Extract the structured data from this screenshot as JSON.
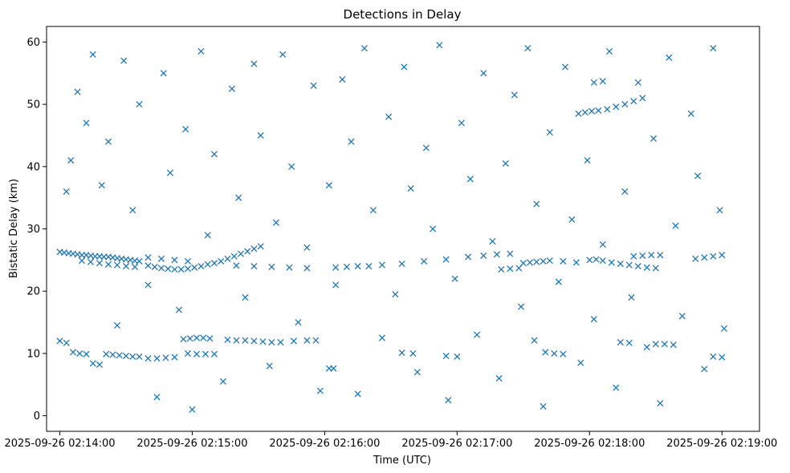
{
  "chart_data": {
    "type": "scatter",
    "title": "Detections in Delay",
    "xlabel": "Time (UTC)",
    "ylabel": "Bistatic Delay (km)",
    "marker": "x",
    "color": "#1f77b4",
    "grid": false,
    "legend": "none",
    "xlim": [
      "2025-09-26 02:13:54",
      "2025-09-26 02:19:17"
    ],
    "ylim": [
      -2.5,
      62.5
    ],
    "x_ticks": [
      "2025-09-26 02:14:00",
      "2025-09-26 02:15:00",
      "2025-09-26 02:16:00",
      "2025-09-26 02:17:00",
      "2025-09-26 02:18:00",
      "2025-09-26 02:19:00"
    ],
    "y_ticks": [
      "0",
      "10",
      "20",
      "30",
      "40",
      "50",
      "60"
    ],
    "series": [
      {
        "points": [
          [
            "2025-09-26 02:14:00",
            26.3
          ],
          [
            "2025-09-26 02:14:02",
            26.2
          ],
          [
            "2025-09-26 02:14:04",
            26.1
          ],
          [
            "2025-09-26 02:14:06",
            26.0
          ],
          [
            "2025-09-26 02:14:08",
            25.9
          ],
          [
            "2025-09-26 02:14:10",
            25.8
          ],
          [
            "2025-09-26 02:14:12",
            25.8
          ],
          [
            "2025-09-26 02:14:14",
            25.7
          ],
          [
            "2025-09-26 02:14:16",
            25.6
          ],
          [
            "2025-09-26 02:14:18",
            25.6
          ],
          [
            "2025-09-26 02:14:20",
            25.5
          ],
          [
            "2025-09-26 02:14:22",
            25.5
          ],
          [
            "2025-09-26 02:14:24",
            25.4
          ],
          [
            "2025-09-26 02:14:26",
            25.3
          ],
          [
            "2025-09-26 02:14:28",
            25.2
          ],
          [
            "2025-09-26 02:14:30",
            25.1
          ],
          [
            "2025-09-26 02:14:32",
            25.0
          ],
          [
            "2025-09-26 02:14:34",
            24.9
          ],
          [
            "2025-09-26 02:14:36",
            24.8
          ],
          [
            "2025-09-26 02:14:10",
            24.9
          ],
          [
            "2025-09-26 02:14:14",
            24.7
          ],
          [
            "2025-09-26 02:14:18",
            24.5
          ],
          [
            "2025-09-26 02:14:22",
            24.3
          ],
          [
            "2025-09-26 02:14:26",
            24.2
          ],
          [
            "2025-09-26 02:14:30",
            24.0
          ],
          [
            "2025-09-26 02:14:34",
            23.9
          ],
          [
            "2025-09-26 02:14:40",
            24.1
          ],
          [
            "2025-09-26 02:14:43",
            23.9
          ],
          [
            "2025-09-26 02:14:46",
            23.7
          ],
          [
            "2025-09-26 02:14:49",
            23.6
          ],
          [
            "2025-09-26 02:14:52",
            23.5
          ],
          [
            "2025-09-26 02:14:55",
            23.5
          ],
          [
            "2025-09-26 02:14:58",
            23.6
          ],
          [
            "2025-09-26 02:15:01",
            23.8
          ],
          [
            "2025-09-26 02:15:04",
            24.0
          ],
          [
            "2025-09-26 02:15:07",
            24.3
          ],
          [
            "2025-09-26 02:15:10",
            24.5
          ],
          [
            "2025-09-26 02:15:13",
            24.8
          ],
          [
            "2025-09-26 02:15:16",
            25.2
          ],
          [
            "2025-09-26 02:15:19",
            25.6
          ],
          [
            "2025-09-26 02:15:22",
            26.0
          ],
          [
            "2025-09-26 02:15:25",
            26.4
          ],
          [
            "2025-09-26 02:15:28",
            26.8
          ],
          [
            "2025-09-26 02:15:31",
            27.2
          ],
          [
            "2025-09-26 02:14:40",
            25.4
          ],
          [
            "2025-09-26 02:14:46",
            25.2
          ],
          [
            "2025-09-26 02:14:52",
            25.0
          ],
          [
            "2025-09-26 02:14:58",
            24.8
          ],
          [
            "2025-09-26 02:15:20",
            24.1
          ],
          [
            "2025-09-26 02:15:28",
            24.0
          ],
          [
            "2025-09-26 02:15:36",
            23.9
          ],
          [
            "2025-09-26 02:15:44",
            23.8
          ],
          [
            "2025-09-26 02:15:52",
            23.7
          ],
          [
            "2025-09-26 02:16:05",
            23.8
          ],
          [
            "2025-09-26 02:16:10",
            23.9
          ],
          [
            "2025-09-26 02:16:15",
            24.0
          ],
          [
            "2025-09-26 02:16:20",
            24.0
          ],
          [
            "2025-09-26 02:16:26",
            24.2
          ],
          [
            "2025-09-26 02:16:35",
            24.4
          ],
          [
            "2025-09-26 02:16:45",
            24.8
          ],
          [
            "2025-09-26 02:16:55",
            25.1
          ],
          [
            "2025-09-26 02:17:05",
            25.5
          ],
          [
            "2025-09-26 02:17:12",
            25.7
          ],
          [
            "2025-09-26 02:17:18",
            25.9
          ],
          [
            "2025-09-26 02:17:24",
            26.0
          ],
          [
            "2025-09-26 02:17:20",
            23.5
          ],
          [
            "2025-09-26 02:17:24",
            23.6
          ],
          [
            "2025-09-26 02:17:28",
            23.7
          ],
          [
            "2025-09-26 02:17:30",
            24.5
          ],
          [
            "2025-09-26 02:17:33",
            24.6
          ],
          [
            "2025-09-26 02:17:36",
            24.7
          ],
          [
            "2025-09-26 02:17:39",
            24.8
          ],
          [
            "2025-09-26 02:17:42",
            24.9
          ],
          [
            "2025-09-26 02:17:48",
            24.8
          ],
          [
            "2025-09-26 02:17:54",
            24.6
          ],
          [
            "2025-09-26 02:18:00",
            25.0
          ],
          [
            "2025-09-26 02:18:03",
            25.1
          ],
          [
            "2025-09-26 02:18:06",
            24.9
          ],
          [
            "2025-09-26 02:18:10",
            24.6
          ],
          [
            "2025-09-26 02:18:14",
            24.4
          ],
          [
            "2025-09-26 02:18:18",
            24.2
          ],
          [
            "2025-09-26 02:18:22",
            24.0
          ],
          [
            "2025-09-26 02:18:26",
            23.8
          ],
          [
            "2025-09-26 02:18:30",
            23.7
          ],
          [
            "2025-09-26 02:18:20",
            25.6
          ],
          [
            "2025-09-26 02:18:24",
            25.7
          ],
          [
            "2025-09-26 02:18:28",
            25.8
          ],
          [
            "2025-09-26 02:18:32",
            25.8
          ],
          [
            "2025-09-26 02:18:48",
            25.2
          ],
          [
            "2025-09-26 02:18:52",
            25.4
          ],
          [
            "2025-09-26 02:18:56",
            25.6
          ],
          [
            "2025-09-26 02:19:00",
            25.8
          ],
          [
            "2025-09-26 02:14:00",
            12.0
          ],
          [
            "2025-09-26 02:14:03",
            11.7
          ],
          [
            "2025-09-26 02:14:06",
            10.2
          ],
          [
            "2025-09-26 02:14:09",
            10.0
          ],
          [
            "2025-09-26 02:14:12",
            9.9
          ],
          [
            "2025-09-26 02:14:15",
            8.4
          ],
          [
            "2025-09-26 02:14:18",
            8.2
          ],
          [
            "2025-09-26 02:14:21",
            9.9
          ],
          [
            "2025-09-26 02:14:24",
            9.8
          ],
          [
            "2025-09-26 02:14:27",
            9.7
          ],
          [
            "2025-09-26 02:14:30",
            9.6
          ],
          [
            "2025-09-26 02:14:33",
            9.5
          ],
          [
            "2025-09-26 02:14:36",
            9.5
          ],
          [
            "2025-09-26 02:14:40",
            9.2
          ],
          [
            "2025-09-26 02:14:44",
            9.2
          ],
          [
            "2025-09-26 02:14:48",
            9.3
          ],
          [
            "2025-09-26 02:14:52",
            9.4
          ],
          [
            "2025-09-26 02:14:56",
            12.3
          ],
          [
            "2025-09-26 02:14:59",
            12.4
          ],
          [
            "2025-09-26 02:15:02",
            12.5
          ],
          [
            "2025-09-26 02:15:05",
            12.5
          ],
          [
            "2025-09-26 02:15:08",
            12.4
          ],
          [
            "2025-09-26 02:14:58",
            10.0
          ],
          [
            "2025-09-26 02:15:02",
            9.9
          ],
          [
            "2025-09-26 02:15:06",
            9.9
          ],
          [
            "2025-09-26 02:15:10",
            9.9
          ],
          [
            "2025-09-26 02:15:16",
            12.2
          ],
          [
            "2025-09-26 02:15:20",
            12.1
          ],
          [
            "2025-09-26 02:15:24",
            12.1
          ],
          [
            "2025-09-26 02:15:28",
            12.0
          ],
          [
            "2025-09-26 02:15:32",
            11.9
          ],
          [
            "2025-09-26 02:15:36",
            11.8
          ],
          [
            "2025-09-26 02:15:40",
            11.8
          ],
          [
            "2025-09-26 02:15:46",
            12.0
          ],
          [
            "2025-09-26 02:15:52",
            12.1
          ],
          [
            "2025-09-26 02:15:56",
            12.1
          ],
          [
            "2025-09-26 02:16:02",
            7.6
          ],
          [
            "2025-09-26 02:16:04",
            7.6
          ],
          [
            "2025-09-26 02:16:35",
            10.1
          ],
          [
            "2025-09-26 02:16:40",
            10.0
          ],
          [
            "2025-09-26 02:16:55",
            9.6
          ],
          [
            "2025-09-26 02:17:00",
            9.5
          ],
          [
            "2025-09-26 02:17:35",
            12.1
          ],
          [
            "2025-09-26 02:17:40",
            10.2
          ],
          [
            "2025-09-26 02:17:44",
            10.0
          ],
          [
            "2025-09-26 02:17:48",
            9.9
          ],
          [
            "2025-09-26 02:18:14",
            11.8
          ],
          [
            "2025-09-26 02:18:18",
            11.7
          ],
          [
            "2025-09-26 02:18:30",
            11.5
          ],
          [
            "2025-09-26 02:18:34",
            11.5
          ],
          [
            "2025-09-26 02:18:38",
            11.4
          ],
          [
            "2025-09-26 02:18:56",
            9.5
          ],
          [
            "2025-09-26 02:19:00",
            9.4
          ],
          [
            "2025-09-26 02:17:55",
            48.5
          ],
          [
            "2025-09-26 02:17:58",
            48.7
          ],
          [
            "2025-09-26 02:18:01",
            48.9
          ],
          [
            "2025-09-26 02:18:04",
            49.0
          ],
          [
            "2025-09-26 02:18:08",
            49.2
          ],
          [
            "2025-09-26 02:18:12",
            49.6
          ],
          [
            "2025-09-26 02:18:16",
            50.0
          ],
          [
            "2025-09-26 02:18:20",
            50.5
          ],
          [
            "2025-09-26 02:18:24",
            51.0
          ],
          [
            "2025-09-26 02:18:02",
            53.5
          ],
          [
            "2025-09-26 02:18:06",
            53.7
          ],
          [
            "2025-09-26 02:14:03",
            36.0
          ],
          [
            "2025-09-26 02:14:05",
            41.0
          ],
          [
            "2025-09-26 02:14:08",
            52.0
          ],
          [
            "2025-09-26 02:14:12",
            47.0
          ],
          [
            "2025-09-26 02:14:15",
            58.0
          ],
          [
            "2025-09-26 02:14:19",
            37.0
          ],
          [
            "2025-09-26 02:14:22",
            44.0
          ],
          [
            "2025-09-26 02:14:26",
            14.5
          ],
          [
            "2025-09-26 02:14:29",
            57.0
          ],
          [
            "2025-09-26 02:14:33",
            33.0
          ],
          [
            "2025-09-26 02:14:36",
            50.0
          ],
          [
            "2025-09-26 02:14:40",
            21.0
          ],
          [
            "2025-09-26 02:14:44",
            3.0
          ],
          [
            "2025-09-26 02:14:47",
            55.0
          ],
          [
            "2025-09-26 02:14:50",
            39.0
          ],
          [
            "2025-09-26 02:14:54",
            17.0
          ],
          [
            "2025-09-26 02:14:57",
            46.0
          ],
          [
            "2025-09-26 02:15:00",
            1.0
          ],
          [
            "2025-09-26 02:15:04",
            58.5
          ],
          [
            "2025-09-26 02:15:07",
            29.0
          ],
          [
            "2025-09-26 02:15:10",
            42.0
          ],
          [
            "2025-09-26 02:15:14",
            5.5
          ],
          [
            "2025-09-26 02:15:18",
            52.5
          ],
          [
            "2025-09-26 02:15:21",
            35.0
          ],
          [
            "2025-09-26 02:15:24",
            19.0
          ],
          [
            "2025-09-26 02:15:28",
            56.5
          ],
          [
            "2025-09-26 02:15:31",
            45.0
          ],
          [
            "2025-09-26 02:15:35",
            8.0
          ],
          [
            "2025-09-26 02:15:38",
            31.0
          ],
          [
            "2025-09-26 02:15:41",
            58.0
          ],
          [
            "2025-09-26 02:15:45",
            40.0
          ],
          [
            "2025-09-26 02:15:48",
            15.0
          ],
          [
            "2025-09-26 02:15:52",
            27.0
          ],
          [
            "2025-09-26 02:15:55",
            53.0
          ],
          [
            "2025-09-26 02:15:58",
            4.0
          ],
          [
            "2025-09-26 02:16:02",
            37.0
          ],
          [
            "2025-09-26 02:16:05",
            21.0
          ],
          [
            "2025-09-26 02:16:08",
            54.0
          ],
          [
            "2025-09-26 02:16:12",
            44.0
          ],
          [
            "2025-09-26 02:16:15",
            3.5
          ],
          [
            "2025-09-26 02:16:18",
            59.0
          ],
          [
            "2025-09-26 02:16:22",
            33.0
          ],
          [
            "2025-09-26 02:16:26",
            12.5
          ],
          [
            "2025-09-26 02:16:29",
            48.0
          ],
          [
            "2025-09-26 02:16:32",
            19.5
          ],
          [
            "2025-09-26 02:16:36",
            56.0
          ],
          [
            "2025-09-26 02:16:39",
            36.5
          ],
          [
            "2025-09-26 02:16:42",
            7.0
          ],
          [
            "2025-09-26 02:16:46",
            43.0
          ],
          [
            "2025-09-26 02:16:49",
            30.0
          ],
          [
            "2025-09-26 02:16:52",
            59.5
          ],
          [
            "2025-09-26 02:16:56",
            2.5
          ],
          [
            "2025-09-26 02:16:59",
            22.0
          ],
          [
            "2025-09-26 02:17:02",
            47.0
          ],
          [
            "2025-09-26 02:17:06",
            38.0
          ],
          [
            "2025-09-26 02:17:09",
            13.0
          ],
          [
            "2025-09-26 02:17:12",
            55.0
          ],
          [
            "2025-09-26 02:17:16",
            28.0
          ],
          [
            "2025-09-26 02:17:19",
            6.0
          ],
          [
            "2025-09-26 02:17:22",
            40.5
          ],
          [
            "2025-09-26 02:17:26",
            51.5
          ],
          [
            "2025-09-26 02:17:29",
            17.5
          ],
          [
            "2025-09-26 02:17:32",
            59.0
          ],
          [
            "2025-09-26 02:17:36",
            34.0
          ],
          [
            "2025-09-26 02:17:39",
            1.5
          ],
          [
            "2025-09-26 02:17:42",
            45.5
          ],
          [
            "2025-09-26 02:17:46",
            21.5
          ],
          [
            "2025-09-26 02:17:49",
            56.0
          ],
          [
            "2025-09-26 02:17:52",
            31.5
          ],
          [
            "2025-09-26 02:17:56",
            8.5
          ],
          [
            "2025-09-26 02:17:59",
            41.0
          ],
          [
            "2025-09-26 02:18:02",
            15.5
          ],
          [
            "2025-09-26 02:18:06",
            27.5
          ],
          [
            "2025-09-26 02:18:09",
            58.5
          ],
          [
            "2025-09-26 02:18:12",
            4.5
          ],
          [
            "2025-09-26 02:18:16",
            36.0
          ],
          [
            "2025-09-26 02:18:19",
            19.0
          ],
          [
            "2025-09-26 02:18:22",
            53.5
          ],
          [
            "2025-09-26 02:18:26",
            11.0
          ],
          [
            "2025-09-26 02:18:29",
            44.5
          ],
          [
            "2025-09-26 02:18:32",
            2.0
          ],
          [
            "2025-09-26 02:18:36",
            57.5
          ],
          [
            "2025-09-26 02:18:39",
            30.5
          ],
          [
            "2025-09-26 02:18:42",
            16.0
          ],
          [
            "2025-09-26 02:18:46",
            48.5
          ],
          [
            "2025-09-26 02:18:49",
            38.5
          ],
          [
            "2025-09-26 02:18:52",
            7.5
          ],
          [
            "2025-09-26 02:18:56",
            59.0
          ],
          [
            "2025-09-26 02:18:59",
            33.0
          ],
          [
            "2025-09-26 02:19:01",
            14.0
          ]
        ]
      }
    ]
  }
}
